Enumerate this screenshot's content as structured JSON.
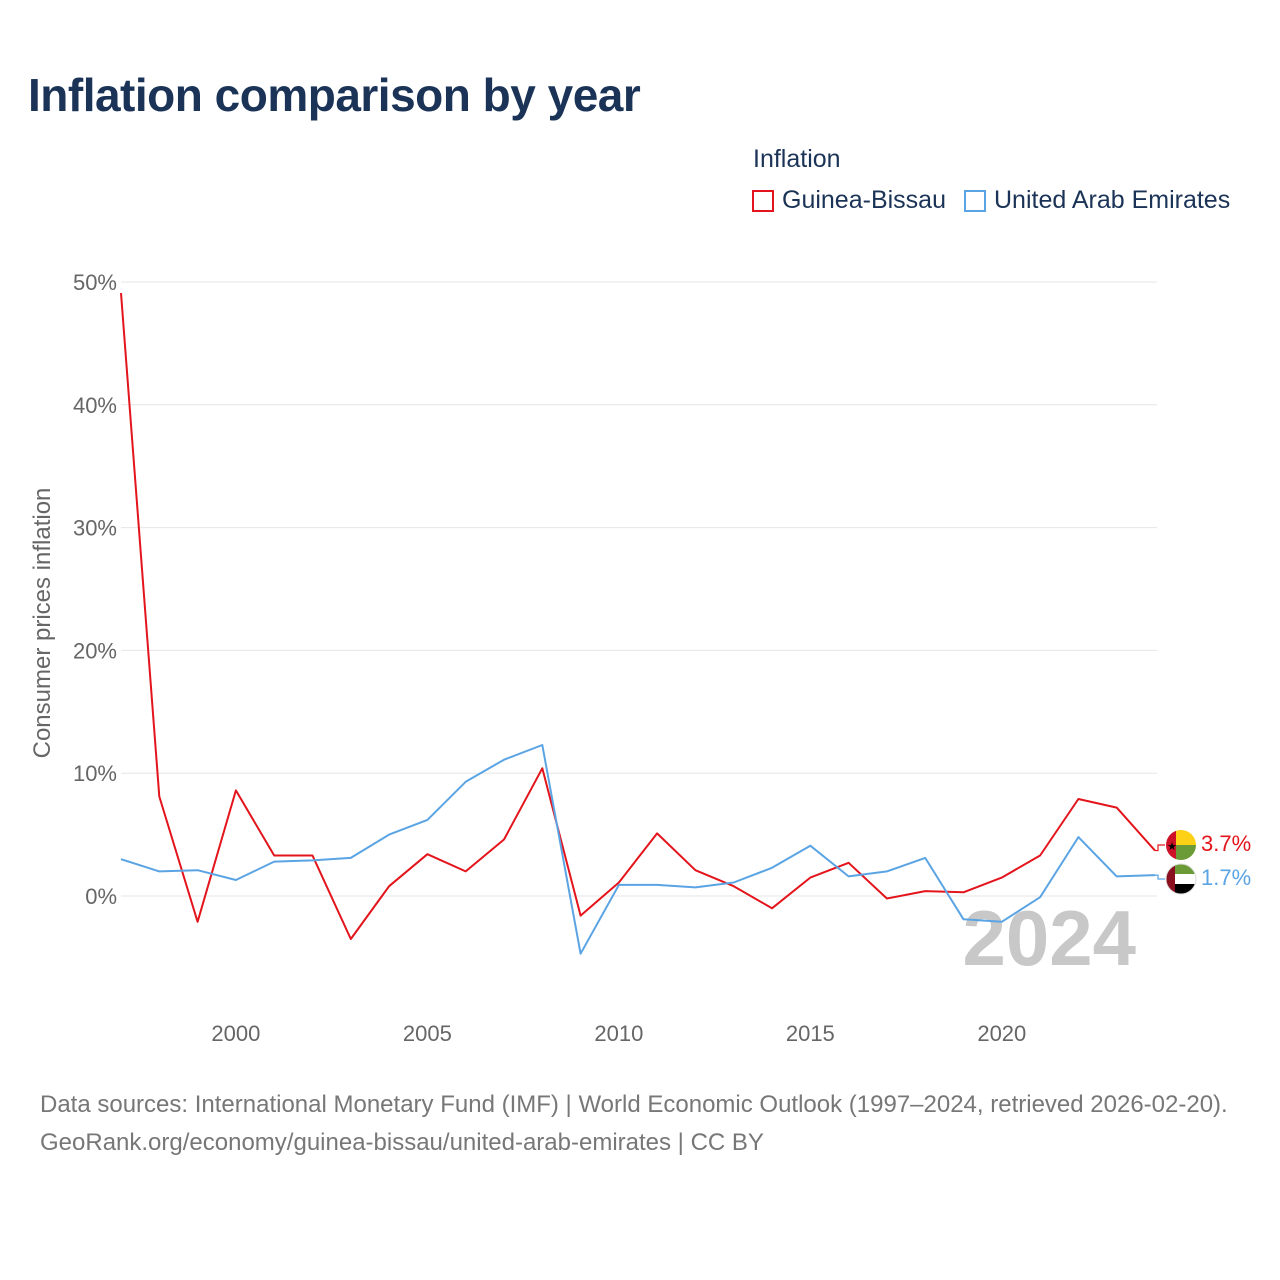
{
  "title": "Inflation comparison by year",
  "legend": {
    "title": "Inflation",
    "items": [
      {
        "label": "Guinea-Bissau",
        "color": "#e3141b"
      },
      {
        "label": "United Arab Emirates",
        "color": "#5ba4e4"
      }
    ]
  },
  "chart_data": {
    "type": "line",
    "title": "Inflation comparison by year",
    "xlabel": "",
    "ylabel": "Consumer prices inflation",
    "xlim": [
      1997,
      2024
    ],
    "ylim": [
      -9,
      50
    ],
    "x_ticks": [
      2000,
      2005,
      2010,
      2015,
      2020
    ],
    "x_tick_labels": [
      "2000",
      "2005",
      "2010",
      "2015",
      "2020"
    ],
    "y_ticks": [
      0,
      10,
      20,
      30,
      40,
      50
    ],
    "y_tick_labels": [
      "0%",
      "10%",
      "20%",
      "30%",
      "40%",
      "50%"
    ],
    "grid": true,
    "x": [
      1997,
      1998,
      1999,
      2000,
      2001,
      2002,
      2003,
      2004,
      2005,
      2006,
      2007,
      2008,
      2009,
      2010,
      2011,
      2012,
      2013,
      2014,
      2015,
      2016,
      2017,
      2018,
      2019,
      2020,
      2021,
      2022,
      2023,
      2024
    ],
    "series": [
      {
        "name": "Guinea-Bissau",
        "color": "#e3141b",
        "values": [
          49.1,
          8.1,
          -2.1,
          8.6,
          3.3,
          3.3,
          -3.5,
          0.8,
          3.4,
          2.0,
          4.6,
          10.4,
          -1.6,
          1.1,
          5.1,
          2.1,
          0.8,
          -1.0,
          1.5,
          2.7,
          -0.2,
          0.4,
          0.3,
          1.5,
          3.3,
          7.9,
          7.2,
          3.7
        ],
        "end_label": "3.7%"
      },
      {
        "name": "United Arab Emirates",
        "color": "#5ba4e4",
        "values": [
          3.0,
          2.0,
          2.1,
          1.3,
          2.8,
          2.9,
          3.1,
          5.0,
          6.2,
          9.3,
          11.1,
          12.3,
          -4.7,
          0.9,
          0.9,
          0.7,
          1.1,
          2.3,
          4.1,
          1.6,
          2.0,
          3.1,
          -1.9,
          -2.1,
          -0.1,
          4.8,
          1.6,
          1.7
        ],
        "end_label": "1.7%"
      }
    ],
    "year_watermark": "2024"
  },
  "footer": {
    "line1": "Data sources: International Monetary Fund (IMF) | World Economic Outlook (1997–2024, retrieved 2026-02-20).",
    "line2": "GeoRank.org/economy/guinea-bissau/united-arab-emirates | CC BY"
  }
}
